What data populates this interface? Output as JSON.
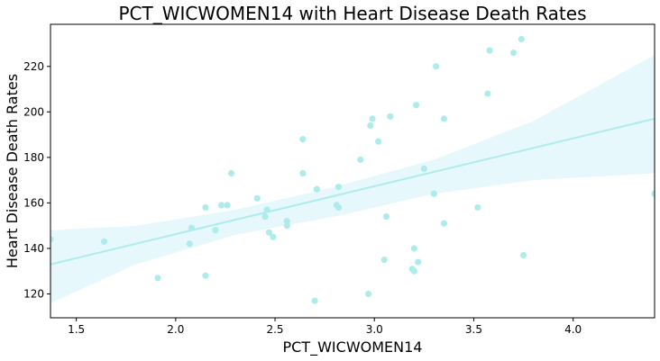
{
  "chart_data": {
    "type": "scatter",
    "title": "PCT_WICWOMEN14 with Heart Disease Death Rates",
    "xlabel": "PCT_WICWOMEN14",
    "ylabel": "Heart Disease Death Rates",
    "xlim": [
      1.37,
      4.41
    ],
    "ylim": [
      109.5,
      238.5
    ],
    "xticks": [
      1.5,
      2.0,
      2.5,
      3.0,
      3.5,
      4.0
    ],
    "xtick_labels": [
      "1.5",
      "2.0",
      "2.5",
      "3.0",
      "3.5",
      "4.0"
    ],
    "yticks": [
      120,
      140,
      160,
      180,
      200,
      220
    ],
    "ytick_labels": [
      "120",
      "140",
      "160",
      "180",
      "200",
      "220"
    ],
    "grid": false,
    "legend": null,
    "colors": {
      "points": "#aeecec",
      "regression_line": "#aeecec",
      "confidence_band": "#e6f8fb"
    },
    "points": {
      "x": [
        1.37,
        1.64,
        1.91,
        2.07,
        2.08,
        2.15,
        2.15,
        2.2,
        2.23,
        2.26,
        2.28,
        2.41,
        2.45,
        2.46,
        2.47,
        2.49,
        2.56,
        2.56,
        2.64,
        2.64,
        2.7,
        2.71,
        2.81,
        2.82,
        2.82,
        2.93,
        2.97,
        2.98,
        2.99,
        3.02,
        3.05,
        3.06,
        3.08,
        3.19,
        3.2,
        3.2,
        3.21,
        3.22,
        3.25,
        3.3,
        3.31,
        3.35,
        3.35,
        3.52,
        3.57,
        3.58,
        3.7,
        3.74,
        3.75,
        4.41
      ],
      "y": [
        144,
        143,
        127,
        142,
        149,
        158,
        128,
        148,
        159,
        159,
        173,
        162,
        154,
        157,
        147,
        145,
        152,
        150,
        173,
        188,
        117,
        166,
        159,
        158,
        167,
        179,
        120,
        194,
        197,
        187,
        135,
        154,
        198,
        131,
        140,
        130,
        203,
        134,
        175,
        164,
        220,
        197,
        151,
        158,
        208,
        227,
        226,
        232,
        137,
        164
      ]
    },
    "regression": {
      "x": [
        1.37,
        4.41
      ],
      "y": [
        133,
        197
      ]
    },
    "confidence_band": {
      "x": [
        1.37,
        1.8,
        2.3,
        2.8,
        3.3,
        3.8,
        4.41
      ],
      "lower": [
        116,
        133,
        146,
        154,
        164,
        170,
        173
      ],
      "upper": [
        148,
        150,
        157,
        167,
        179,
        196,
        225
      ]
    }
  }
}
